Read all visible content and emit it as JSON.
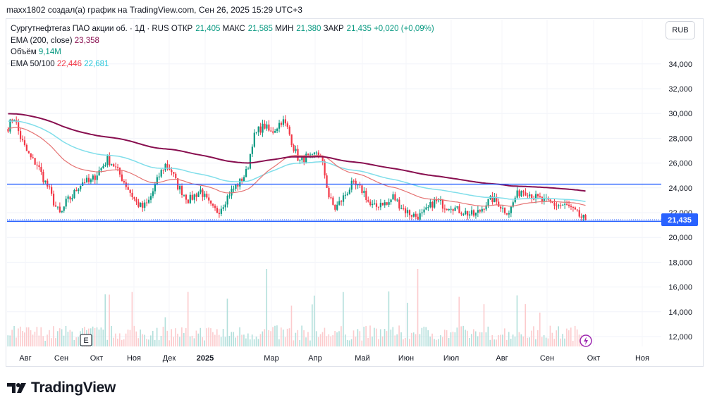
{
  "caption": "maxx1802 создал(а) график на TradingView.com, Сен 26, 2025 15:29 UTC+3",
  "legend": {
    "symbol": "Сургутнефтегаз ПАО акции об. · 1Д · RUS",
    "open_label": "ОТКР",
    "open": "21,405",
    "high_label": "МАКС",
    "high": "21,585",
    "low_label": "МИН",
    "low": "21,380",
    "close_label": "ЗАКР",
    "close": "21,435",
    "change": "+0,020 (+0,09%)",
    "ema200_label": "EMA (200, close)",
    "ema200_value": "23,358",
    "volume_label": "Объём",
    "volume_value": "9,14M",
    "ema_pair_label": "EMA 50/100",
    "ema50_value": "22,446",
    "ema100_value": "22,681"
  },
  "currency_button": "RUB",
  "price_badge": "21,435",
  "earnings_marker": "E",
  "brand": "TradingView",
  "colors": {
    "up": "#089981",
    "down": "#f23645",
    "ema50": "#e57373",
    "ema100": "#80deea",
    "ema200": "#880e4f",
    "hline": "#2962ff",
    "badge": "#2962ff"
  },
  "chart_data": {
    "type": "candlestick",
    "symbol": "Сургутнефтегаз ПАО акции об.",
    "timeframe": "1Д",
    "y_ticks": [
      "12,000",
      "14,000",
      "16,000",
      "18,000",
      "20,000",
      "22,000",
      "24,000",
      "26,000",
      "28,000",
      "30,000",
      "32,000",
      "34,000"
    ],
    "y_range": [
      11.0,
      35.3
    ],
    "x_ticks": [
      "Авг",
      "Сен",
      "Окт",
      "Ноя",
      "Дек",
      "2025",
      "Мар",
      "Апр",
      "Май",
      "Июн",
      "Июл",
      "Авг",
      "Сен",
      "Окт",
      "Ноя"
    ],
    "horizontal_levels": [
      24.3,
      21.3
    ],
    "last_price": 21.435,
    "close_series": [
      28.9,
      29.8,
      28.2,
      27.1,
      26.3,
      25.9,
      24.8,
      23.9,
      22.6,
      21.8,
      22.9,
      23.3,
      24.1,
      24.6,
      24.4,
      25.0,
      25.6,
      26.3,
      25.9,
      25.2,
      24.4,
      23.6,
      22.8,
      22.4,
      22.8,
      23.9,
      25.1,
      25.9,
      25.4,
      24.2,
      23.6,
      23.0,
      23.4,
      23.8,
      23.0,
      22.3,
      22.1,
      22.8,
      23.6,
      24.1,
      24.6,
      25.4,
      28.0,
      28.7,
      29.0,
      28.4,
      28.9,
      29.5,
      28.7,
      27.2,
      26.1,
      26.5,
      26.3,
      27.0,
      25.8,
      23.3,
      22.3,
      22.9,
      23.6,
      24.3,
      24.0,
      23.7,
      22.6,
      22.4,
      22.9,
      22.6,
      23.3,
      22.7,
      22.2,
      21.9,
      21.7,
      21.8,
      22.3,
      22.9,
      22.8,
      22.5,
      22.6,
      22.2,
      22.1,
      21.9,
      21.8,
      22.2,
      22.8,
      23.1,
      22.8,
      22.2,
      22.1,
      23.3,
      23.8,
      23.7,
      23.3,
      23.1,
      22.9,
      22.8,
      22.6,
      22.6,
      22.5,
      22.1,
      21.7,
      21.4
    ],
    "series": [
      {
        "name": "EMA 50",
        "value": 22.446
      },
      {
        "name": "EMA 100",
        "value": 22.681
      },
      {
        "name": "EMA (200, close)",
        "value": 23.358
      }
    ],
    "volume": {
      "last": "9,14M"
    }
  }
}
